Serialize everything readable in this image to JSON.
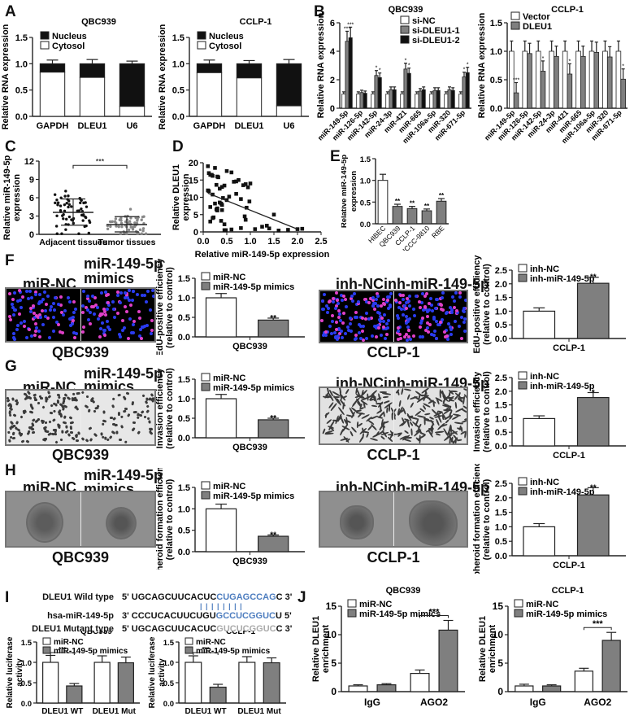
{
  "panels": {
    "A": "A",
    "B": "B",
    "C": "C",
    "D": "D",
    "E": "E",
    "F": "F",
    "G": "G",
    "H": "H",
    "I": "I",
    "J": "J"
  },
  "colors": {
    "nucleus": "#111111",
    "cytosol": "#ffffff",
    "treatment_grey": "#7f7f7f",
    "si_dleu1_1": "#808080",
    "si_dleu1_2": "#111111",
    "sequence_highlight": "#4d7dbf",
    "mutant_grey": "#aaaaaa"
  },
  "images": {
    "F_left": {
      "left_label": "miR-NC",
      "right_label_1": "miR-149-5p",
      "right_label_2": "mimics",
      "caption": "QBC939"
    },
    "F_right": {
      "left_label": "inh-NC",
      "right_label": "inh-miR-149-5p",
      "caption": "CCLP-1"
    },
    "G_left": {
      "left_label": "miR-NC",
      "right_label_1": "miR-149-5p",
      "right_label_2": "mimics",
      "caption": "QBC939"
    },
    "G_right": {
      "left_label": "inh-NC",
      "right_label": "inh-miR-149-5p",
      "caption": "CCLP-1"
    },
    "H_left": {
      "left_label": "miR-NC",
      "right_label_1": "miR-149-5p",
      "right_label_2": "mimics",
      "caption": "QBC939"
    },
    "H_right": {
      "left_label": "inh-NC",
      "right_label": "inh-miR-149-5p",
      "caption": "CCLP-1"
    }
  },
  "sequences": {
    "wild": {
      "label": "DLEU1 Wild type",
      "pre": "5' UGCAGCUUCACUC",
      "hl": "CUGAGCCAG",
      "post": "C 3'"
    },
    "mirna": {
      "label": "hsa-miR-149-5p",
      "pre": "3' CCCUCACUUCUGU",
      "hl": "GCCUCGGUC",
      "post": "U 5'"
    },
    "mutant": {
      "label": "DLEU1 Mutant type",
      "pre": "5' UGCAGCUUCACUC",
      "hl": "GUCUCGGUC",
      "post": "C 3'"
    },
    "pairing": "| | | | | | | |"
  },
  "chart_data": [
    {
      "id": "A1",
      "type": "bar",
      "stacked": true,
      "title": "QBC939",
      "categories": [
        "GAPDH",
        "DLEU1",
        "U6"
      ],
      "series": [
        {
          "name": "Nucleus",
          "values": [
            0.16,
            0.26,
            0.81
          ]
        },
        {
          "name": "Cytosol",
          "values": [
            0.84,
            0.74,
            0.19
          ]
        }
      ],
      "errors": [
        0.07,
        0.08,
        0.05
      ],
      "ylabel": "Relative RNA expression",
      "ylim": [
        0,
        1.5
      ],
      "yticks": [
        "0.0",
        "0.5",
        "1.0",
        "1.5"
      ]
    },
    {
      "id": "A2",
      "type": "bar",
      "stacked": true,
      "title": "CCLP-1",
      "categories": [
        "GAPDH",
        "DLEU1",
        "U6"
      ],
      "series": [
        {
          "name": "Nucleus",
          "values": [
            0.17,
            0.27,
            0.8
          ]
        },
        {
          "name": "Cytosol",
          "values": [
            0.83,
            0.73,
            0.2
          ]
        }
      ],
      "errors": [
        0.07,
        0.06,
        0.08
      ],
      "ylabel": "Relative RNA expression",
      "ylim": [
        0,
        1.5
      ],
      "yticks": [
        "0.0",
        "0.5",
        "1.0",
        "1.5"
      ]
    },
    {
      "id": "B1",
      "type": "bar",
      "title": "QBC939",
      "categories": [
        "miR-149-5p",
        "miR-126-5p",
        "miR-142-5p",
        "miR-24-3p",
        "miR-421",
        "miR-665",
        "miR-106a-5p",
        "miR-320",
        "miR-671-5p"
      ],
      "series": [
        {
          "name": "si-NC",
          "values": [
            1.0,
            1.0,
            1.0,
            1.0,
            1.0,
            1.0,
            1.0,
            1.0,
            1.0
          ]
        },
        {
          "name": "si-DLEU1-1",
          "values": [
            4.7,
            1.1,
            2.3,
            1.3,
            2.75,
            1.2,
            1.25,
            1.3,
            2.2
          ]
        },
        {
          "name": "si-DLEU1-2",
          "values": [
            4.95,
            1.05,
            2.15,
            1.3,
            2.45,
            1.3,
            1.25,
            1.25,
            2.5
          ]
        }
      ],
      "significance": [
        "***",
        "",
        "*",
        "",
        "*",
        "",
        "",
        "",
        "*"
      ],
      "ylabel": "Relative RNA expression",
      "ylim": [
        0,
        6
      ],
      "yticks": [
        "0",
        "2",
        "4",
        "6"
      ]
    },
    {
      "id": "B2",
      "type": "bar",
      "title": "CCLP-1",
      "categories": [
        "miR-149-5p",
        "miR-126-5p",
        "miR-142-5p",
        "miR-24-3p",
        "miR-421",
        "miR-665",
        "miR-106a-5p",
        "miR-320",
        "miR-671-5p"
      ],
      "series": [
        {
          "name": "Vector",
          "values": [
            1.0,
            1.0,
            1.0,
            1.0,
            1.0,
            1.0,
            1.0,
            1.0,
            1.0
          ]
        },
        {
          "name": "DLEU1",
          "values": [
            0.27,
            0.96,
            0.65,
            0.91,
            0.6,
            0.91,
            0.98,
            0.9,
            0.51
          ]
        }
      ],
      "significance": [
        "***",
        "",
        "*",
        "",
        "*",
        "",
        "",
        "",
        "*"
      ],
      "ylabel": "Relative RNA expression",
      "ylim": [
        0,
        1.5
      ],
      "yticks": [
        "0.0",
        "0.5",
        "1.0",
        "1.5"
      ]
    },
    {
      "id": "C",
      "type": "scatter",
      "categories": [
        "Adjacent tissues",
        "Tumor tissues"
      ],
      "mean": [
        3.6,
        1.6
      ],
      "sd_upper": [
        5.8,
        2.9
      ],
      "sd_lower": [
        1.5,
        0.4
      ],
      "significance": "***",
      "ylabel": "Relative miR-149-5p expression",
      "ylim": [
        0,
        12
      ],
      "yticks": [
        "0",
        "3",
        "6",
        "9",
        "12"
      ]
    },
    {
      "id": "D",
      "type": "scatter",
      "x": [
        0.1,
        0.12,
        0.15,
        0.18,
        0.2,
        0.25,
        0.28,
        0.3,
        0.32,
        0.35,
        0.38,
        0.4,
        0.42,
        0.45,
        0.5,
        0.55,
        0.6,
        0.65,
        0.7,
        0.75,
        0.8,
        0.85,
        0.9,
        0.95,
        1.0,
        0.1,
        0.15,
        0.2,
        0.25,
        0.3,
        0.35,
        0.4,
        0.45,
        0.48,
        0.6,
        0.8,
        0.88,
        0.92,
        1.1,
        1.25,
        1.35,
        1.4,
        1.5,
        1.6,
        1.8,
        2.0,
        2.1,
        0.12,
        0.22,
        0.3,
        0.38,
        0.5,
        0.7,
        0.9,
        0.98,
        0.15,
        0.2,
        0.28,
        0.4,
        0.45
      ],
      "y": [
        19,
        17,
        16.5,
        16.5,
        16.2,
        18.5,
        13.6,
        16,
        15.8,
        12.5,
        8.2,
        13,
        9.8,
        13.4,
        17.6,
        10.2,
        17.2,
        14.5,
        11,
        15,
        9.5,
        13.5,
        13.8,
        12.9,
        14,
        12,
        7.2,
        10.8,
        8.2,
        6.8,
        8.5,
        7.8,
        2.2,
        0.5,
        0.7,
        1.1,
        4.5,
        7,
        0.8,
        1.5,
        1.8,
        1,
        5,
        0.4,
        0.6,
        0.8,
        0.9,
        11.8,
        4.2,
        6.2,
        3.2,
        9.2,
        14.6,
        3.5,
        8.8,
        3,
        4,
        6.5,
        6.3,
        0.5
      ],
      "fit_line": [
        [
          0.1,
          11.2
        ],
        [
          2.0,
          0.8
        ]
      ],
      "xlabel": "Relative miR-149-5p expression",
      "ylabel": "Relative DLEU1 expression",
      "xlim": [
        0,
        2.5
      ],
      "ylim": [
        0,
        20
      ],
      "xticks": [
        "0.0",
        "0.5",
        "1.0",
        "1.5",
        "2.0",
        "2.5"
      ],
      "yticks": [
        "0",
        "5",
        "10",
        "15",
        "20"
      ]
    },
    {
      "id": "E",
      "type": "bar",
      "categories": [
        "HIBEC",
        "QBC939",
        "CCLP-1",
        "HCCC-9810",
        "RBE"
      ],
      "values": [
        1.0,
        0.4,
        0.35,
        0.3,
        0.52
      ],
      "errors": [
        0.14,
        0.05,
        0.05,
        0.04,
        0.06
      ],
      "significance": [
        "",
        "**",
        "**",
        "**",
        "**"
      ],
      "ylabel": "Relative miR-149-5p expression",
      "ylim": [
        0,
        1.5
      ],
      "yticks": [
        "0.0",
        "0.5",
        "1.0",
        "1.5"
      ]
    },
    {
      "id": "F1",
      "type": "bar",
      "categories": [
        "QBC939"
      ],
      "series": [
        {
          "name": "miR-NC",
          "values": [
            1.0
          ]
        },
        {
          "name": "miR-149-5p mimics",
          "values": [
            0.43
          ]
        }
      ],
      "errors": [
        0.11,
        0.05
      ],
      "significance": "**",
      "ylabel": "EdU-positive efficiency (relative to control)",
      "ylim": [
        0,
        1.5
      ],
      "yticks": [
        "0.0",
        "0.5",
        "1.0",
        "1.5"
      ]
    },
    {
      "id": "F2",
      "type": "bar",
      "categories": [
        "CCLP-1"
      ],
      "series": [
        {
          "name": "inh-NC",
          "values": [
            1.0
          ]
        },
        {
          "name": "inh-miR-149-5p",
          "values": [
            2.02
          ]
        }
      ],
      "errors": [
        0.12,
        0.22
      ],
      "significance": "**",
      "ylabel": "EdU-positive efficiency (relative to control)",
      "ylim": [
        0,
        2.5
      ],
      "yticks": [
        "0.0",
        "0.5",
        "1.0",
        "1.5",
        "2.0",
        "2.5"
      ]
    },
    {
      "id": "G1",
      "type": "bar",
      "categories": [
        "QBC939"
      ],
      "series": [
        {
          "name": "miR-NC",
          "values": [
            1.0
          ]
        },
        {
          "name": "miR-149-5p mimics",
          "values": [
            0.46
          ]
        }
      ],
      "errors": [
        0.11,
        0.04
      ],
      "significance": "**",
      "ylabel": "Invasion efficiency (relative to control)",
      "ylim": [
        0,
        1.5
      ],
      "yticks": [
        "0.0",
        "0.5",
        "1.0",
        "1.5"
      ]
    },
    {
      "id": "G2",
      "type": "bar",
      "categories": [
        "CCLP-1"
      ],
      "series": [
        {
          "name": "inh-NC",
          "values": [
            1.0
          ]
        },
        {
          "name": "inh-miR-149-5p",
          "values": [
            1.77
          ]
        }
      ],
      "errors": [
        0.1,
        0.18
      ],
      "significance": "*",
      "ylabel": "Invasion efficiency (relative to control)",
      "ylim": [
        0,
        2.5
      ],
      "yticks": [
        "0.0",
        "0.5",
        "1.0",
        "1.5",
        "2.0",
        "2.5"
      ]
    },
    {
      "id": "H1",
      "type": "bar",
      "categories": [
        "QBC939"
      ],
      "series": [
        {
          "name": "miR-NC",
          "values": [
            1.0
          ]
        },
        {
          "name": "miR-149-5p mimics",
          "values": [
            0.36
          ]
        }
      ],
      "errors": [
        0.11,
        0.03
      ],
      "significance": "**",
      "ylabel": "Spheroid formation efficiency (relative to control)",
      "ylim": [
        0,
        1.5
      ],
      "yticks": [
        "0.0",
        "0.5",
        "1.0",
        "1.5"
      ]
    },
    {
      "id": "H2",
      "type": "bar",
      "categories": [
        "CCLP-1"
      ],
      "series": [
        {
          "name": "inh-NC",
          "values": [
            1.0
          ]
        },
        {
          "name": "inh-miR-149-5p",
          "values": [
            2.1
          ]
        }
      ],
      "errors": [
        0.11,
        0.25
      ],
      "significance": "**",
      "ylabel": "Spheroid formation efficiency (relative to control)",
      "ylim": [
        0,
        2.5
      ],
      "yticks": [
        "0.0",
        "0.5",
        "1.0",
        "1.5",
        "2.0",
        "2.5"
      ]
    },
    {
      "id": "I1",
      "type": "bar",
      "title": "QBC939",
      "categories": [
        "DLEU1 WT",
        "DLEU1 Mut"
      ],
      "series": [
        {
          "name": "miR-NC",
          "values": [
            1.0,
            1.0
          ]
        },
        {
          "name": "miR-149-5p mimics",
          "values": [
            0.42,
            0.99
          ]
        }
      ],
      "errors": [
        [
          0.17,
          0.16
        ],
        [
          0.06,
          0.14
        ]
      ],
      "significance": [
        "***",
        ""
      ],
      "ylabel": "Relative luciferase activity",
      "ylim": [
        0,
        1.5
      ],
      "yticks": [
        "0.0",
        "0.5",
        "1.0",
        "1.5"
      ]
    },
    {
      "id": "I2",
      "type": "bar",
      "title": "CCLP-1",
      "categories": [
        "DLEU1 WT",
        "DLEU1 Mut"
      ],
      "series": [
        {
          "name": "miR-NC",
          "values": [
            1.0,
            1.0
          ]
        },
        {
          "name": "miR-149-5p mimics",
          "values": [
            0.39,
            0.99
          ]
        }
      ],
      "errors": [
        [
          0.16,
          0.14
        ],
        [
          0.07,
          0.12
        ]
      ],
      "significance": [
        "***",
        ""
      ],
      "ylabel": "Relative luciferase activity",
      "ylim": [
        0,
        1.5
      ],
      "yticks": [
        "0.0",
        "0.5",
        "1.0",
        "1.5"
      ]
    },
    {
      "id": "J1",
      "type": "bar",
      "title": "QBC939",
      "categories": [
        "IgG",
        "AGO2"
      ],
      "series": [
        {
          "name": "miR-NC",
          "values": [
            1.0,
            3.2
          ]
        },
        {
          "name": "miR-149-5p mimics",
          "values": [
            1.2,
            10.8
          ]
        }
      ],
      "errors": [
        [
          0.2,
          0.6
        ],
        [
          0.2,
          1.7
        ]
      ],
      "significance": [
        "",
        "***"
      ],
      "ylabel": "Relative DLEU1 enrichment",
      "ylim": [
        0,
        15
      ],
      "yticks": [
        "0",
        "5",
        "10",
        "15"
      ]
    },
    {
      "id": "J2",
      "type": "bar",
      "title": "CCLP-1",
      "categories": [
        "IgG",
        "AGO2"
      ],
      "series": [
        {
          "name": "miR-NC",
          "values": [
            1.0,
            3.6
          ]
        },
        {
          "name": "miR-149-5p mimics",
          "values": [
            1.0,
            9.0
          ]
        }
      ],
      "errors": [
        [
          0.3,
          0.5
        ],
        [
          0.2,
          1.4
        ]
      ],
      "significance": [
        "",
        "***"
      ],
      "ylabel": "Relative DLEU1 enrichment",
      "ylim": [
        0,
        15
      ],
      "yticks": [
        "0",
        "5",
        "10",
        "15"
      ]
    }
  ]
}
